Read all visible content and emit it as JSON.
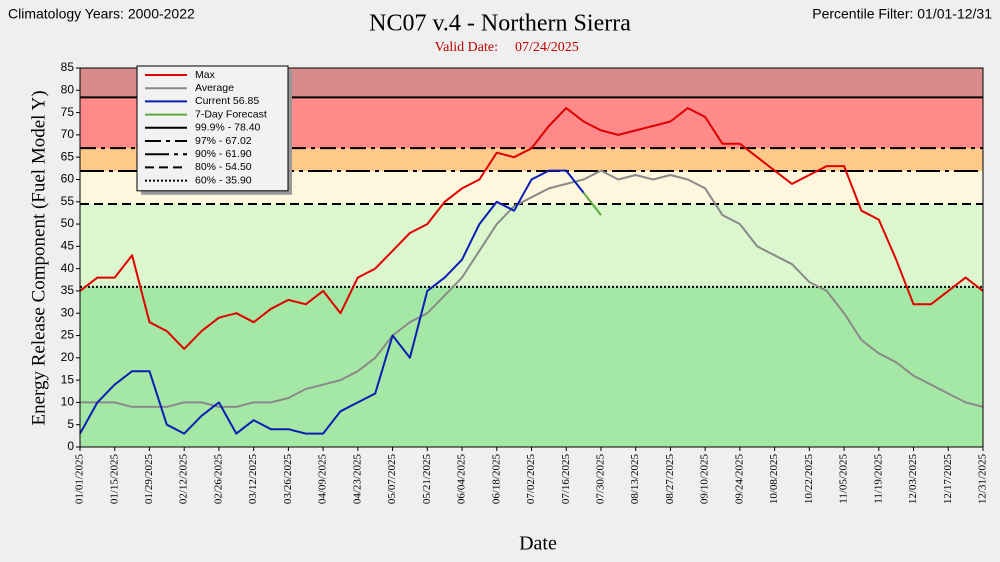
{
  "chart_data": {
    "type": "line",
    "title": "NC07 v.4 - Northern Sierra",
    "subtitle_label": "Valid Date:",
    "subtitle_date": "07/24/2025",
    "left_note": "Climatology Years: 2000-2022",
    "right_note": "Percentile Filter:  01/01-12/31",
    "xlabel": "Date",
    "ylabel": "Energy Release Component (Fuel Model Y)",
    "ylim": [
      0,
      85
    ],
    "yticks": [
      0,
      5,
      10,
      15,
      20,
      25,
      30,
      35,
      40,
      45,
      50,
      55,
      60,
      65,
      70,
      75,
      80,
      85
    ],
    "xlim": [
      "01/01/2025",
      "12/31/2025"
    ],
    "xticks": [
      "01/01/2025",
      "01/15/2025",
      "01/29/2025",
      "02/12/2025",
      "02/26/2025",
      "03/12/2025",
      "03/26/2025",
      "04/09/2025",
      "04/23/2025",
      "05/07/2025",
      "05/21/2025",
      "06/04/2025",
      "06/18/2025",
      "07/02/2025",
      "07/16/2025",
      "07/30/2025",
      "08/13/2025",
      "08/27/2025",
      "09/10/2025",
      "09/24/2025",
      "10/08/2025",
      "10/22/2025",
      "11/05/2025",
      "11/19/2025",
      "12/03/2025",
      "12/17/2025",
      "12/31/2025"
    ],
    "x": [
      "01/01/2025",
      "01/08/2025",
      "01/15/2025",
      "01/22/2025",
      "01/29/2025",
      "02/05/2025",
      "02/12/2025",
      "02/19/2025",
      "02/26/2025",
      "03/05/2025",
      "03/12/2025",
      "03/19/2025",
      "03/26/2025",
      "04/02/2025",
      "04/09/2025",
      "04/16/2025",
      "04/23/2025",
      "04/30/2025",
      "05/07/2025",
      "05/14/2025",
      "05/21/2025",
      "05/28/2025",
      "06/04/2025",
      "06/11/2025",
      "06/18/2025",
      "06/25/2025",
      "07/02/2025",
      "07/09/2025",
      "07/16/2025",
      "07/23/2025",
      "07/30/2025",
      "08/06/2025",
      "08/13/2025",
      "08/20/2025",
      "08/27/2025",
      "09/03/2025",
      "09/10/2025",
      "09/17/2025",
      "09/24/2025",
      "10/01/2025",
      "10/08/2025",
      "10/15/2025",
      "10/22/2025",
      "10/29/2025",
      "11/05/2025",
      "11/12/2025",
      "11/19/2025",
      "11/26/2025",
      "12/03/2025",
      "12/10/2025",
      "12/17/2025",
      "12/24/2025",
      "12/31/2025"
    ],
    "series": [
      {
        "name": "Max",
        "color": "#e00000",
        "values": [
          35,
          38,
          38,
          43,
          28,
          26,
          22,
          26,
          29,
          30,
          28,
          31,
          33,
          32,
          35,
          30,
          38,
          40,
          44,
          48,
          50,
          55,
          58,
          60,
          66,
          65,
          67,
          72,
          76,
          73,
          71,
          70,
          71,
          72,
          73,
          76,
          74,
          68,
          68,
          65,
          62,
          59,
          61,
          63,
          63,
          53,
          51,
          42,
          32,
          32,
          35,
          38,
          35
        ]
      },
      {
        "name": "Average",
        "color": "#8a8a8a",
        "values": [
          10,
          10,
          10,
          9,
          9,
          9,
          10,
          10,
          9,
          9,
          10,
          10,
          11,
          13,
          14,
          15,
          17,
          20,
          25,
          28,
          30,
          34,
          38,
          44,
          50,
          54,
          56,
          58,
          59,
          60,
          62,
          60,
          61,
          60,
          61,
          60,
          58,
          52,
          50,
          45,
          43,
          41,
          37,
          35,
          30,
          24,
          21,
          19,
          16,
          14,
          12,
          10,
          9
        ]
      },
      {
        "name": "Current  56.85",
        "color": "#0a1eb4",
        "values": [
          3,
          10,
          14,
          17,
          17,
          5,
          3,
          7,
          10,
          3,
          6,
          4,
          4,
          3,
          3,
          8,
          10,
          12,
          25,
          20,
          35,
          38,
          42,
          50,
          55,
          53,
          60,
          62,
          62,
          57,
          null,
          null,
          null,
          null,
          null,
          null,
          null,
          null,
          null,
          null,
          null,
          null,
          null,
          null,
          null,
          null,
          null,
          null,
          null,
          null,
          null,
          null,
          null
        ]
      },
      {
        "name": "7-Day Forecast",
        "color": "#5aaa3c",
        "values": [
          null,
          null,
          null,
          null,
          null,
          null,
          null,
          null,
          null,
          null,
          null,
          null,
          null,
          null,
          null,
          null,
          null,
          null,
          null,
          null,
          null,
          null,
          null,
          null,
          null,
          null,
          null,
          null,
          null,
          57,
          52,
          null,
          null,
          null,
          null,
          null,
          null,
          null,
          null,
          null,
          null,
          null,
          null,
          null,
          null,
          null,
          null,
          null,
          null,
          null,
          null,
          null,
          null
        ]
      }
    ],
    "thresholds": [
      {
        "name": "99.9% - 78.40",
        "value": 78.4,
        "dash": "none",
        "band_above": "#d98a8a"
      },
      {
        "name": "97% - 67.02",
        "value": 67.02,
        "dash": "16 5 4 5",
        "band_above": "#ff8a8a"
      },
      {
        "name": "90% - 61.90",
        "value": 61.9,
        "dash": "24 5 4 5",
        "band_above": "#ffc98a"
      },
      {
        "name": "80% - 54.50",
        "value": 54.5,
        "dash": "9 5",
        "band_above": "#fff6de"
      },
      {
        "name": "60% - 35.90",
        "value": 35.9,
        "dash": "2 2",
        "band_above": "#dcf6ce"
      }
    ],
    "base_band": "#a5e8a5"
  }
}
